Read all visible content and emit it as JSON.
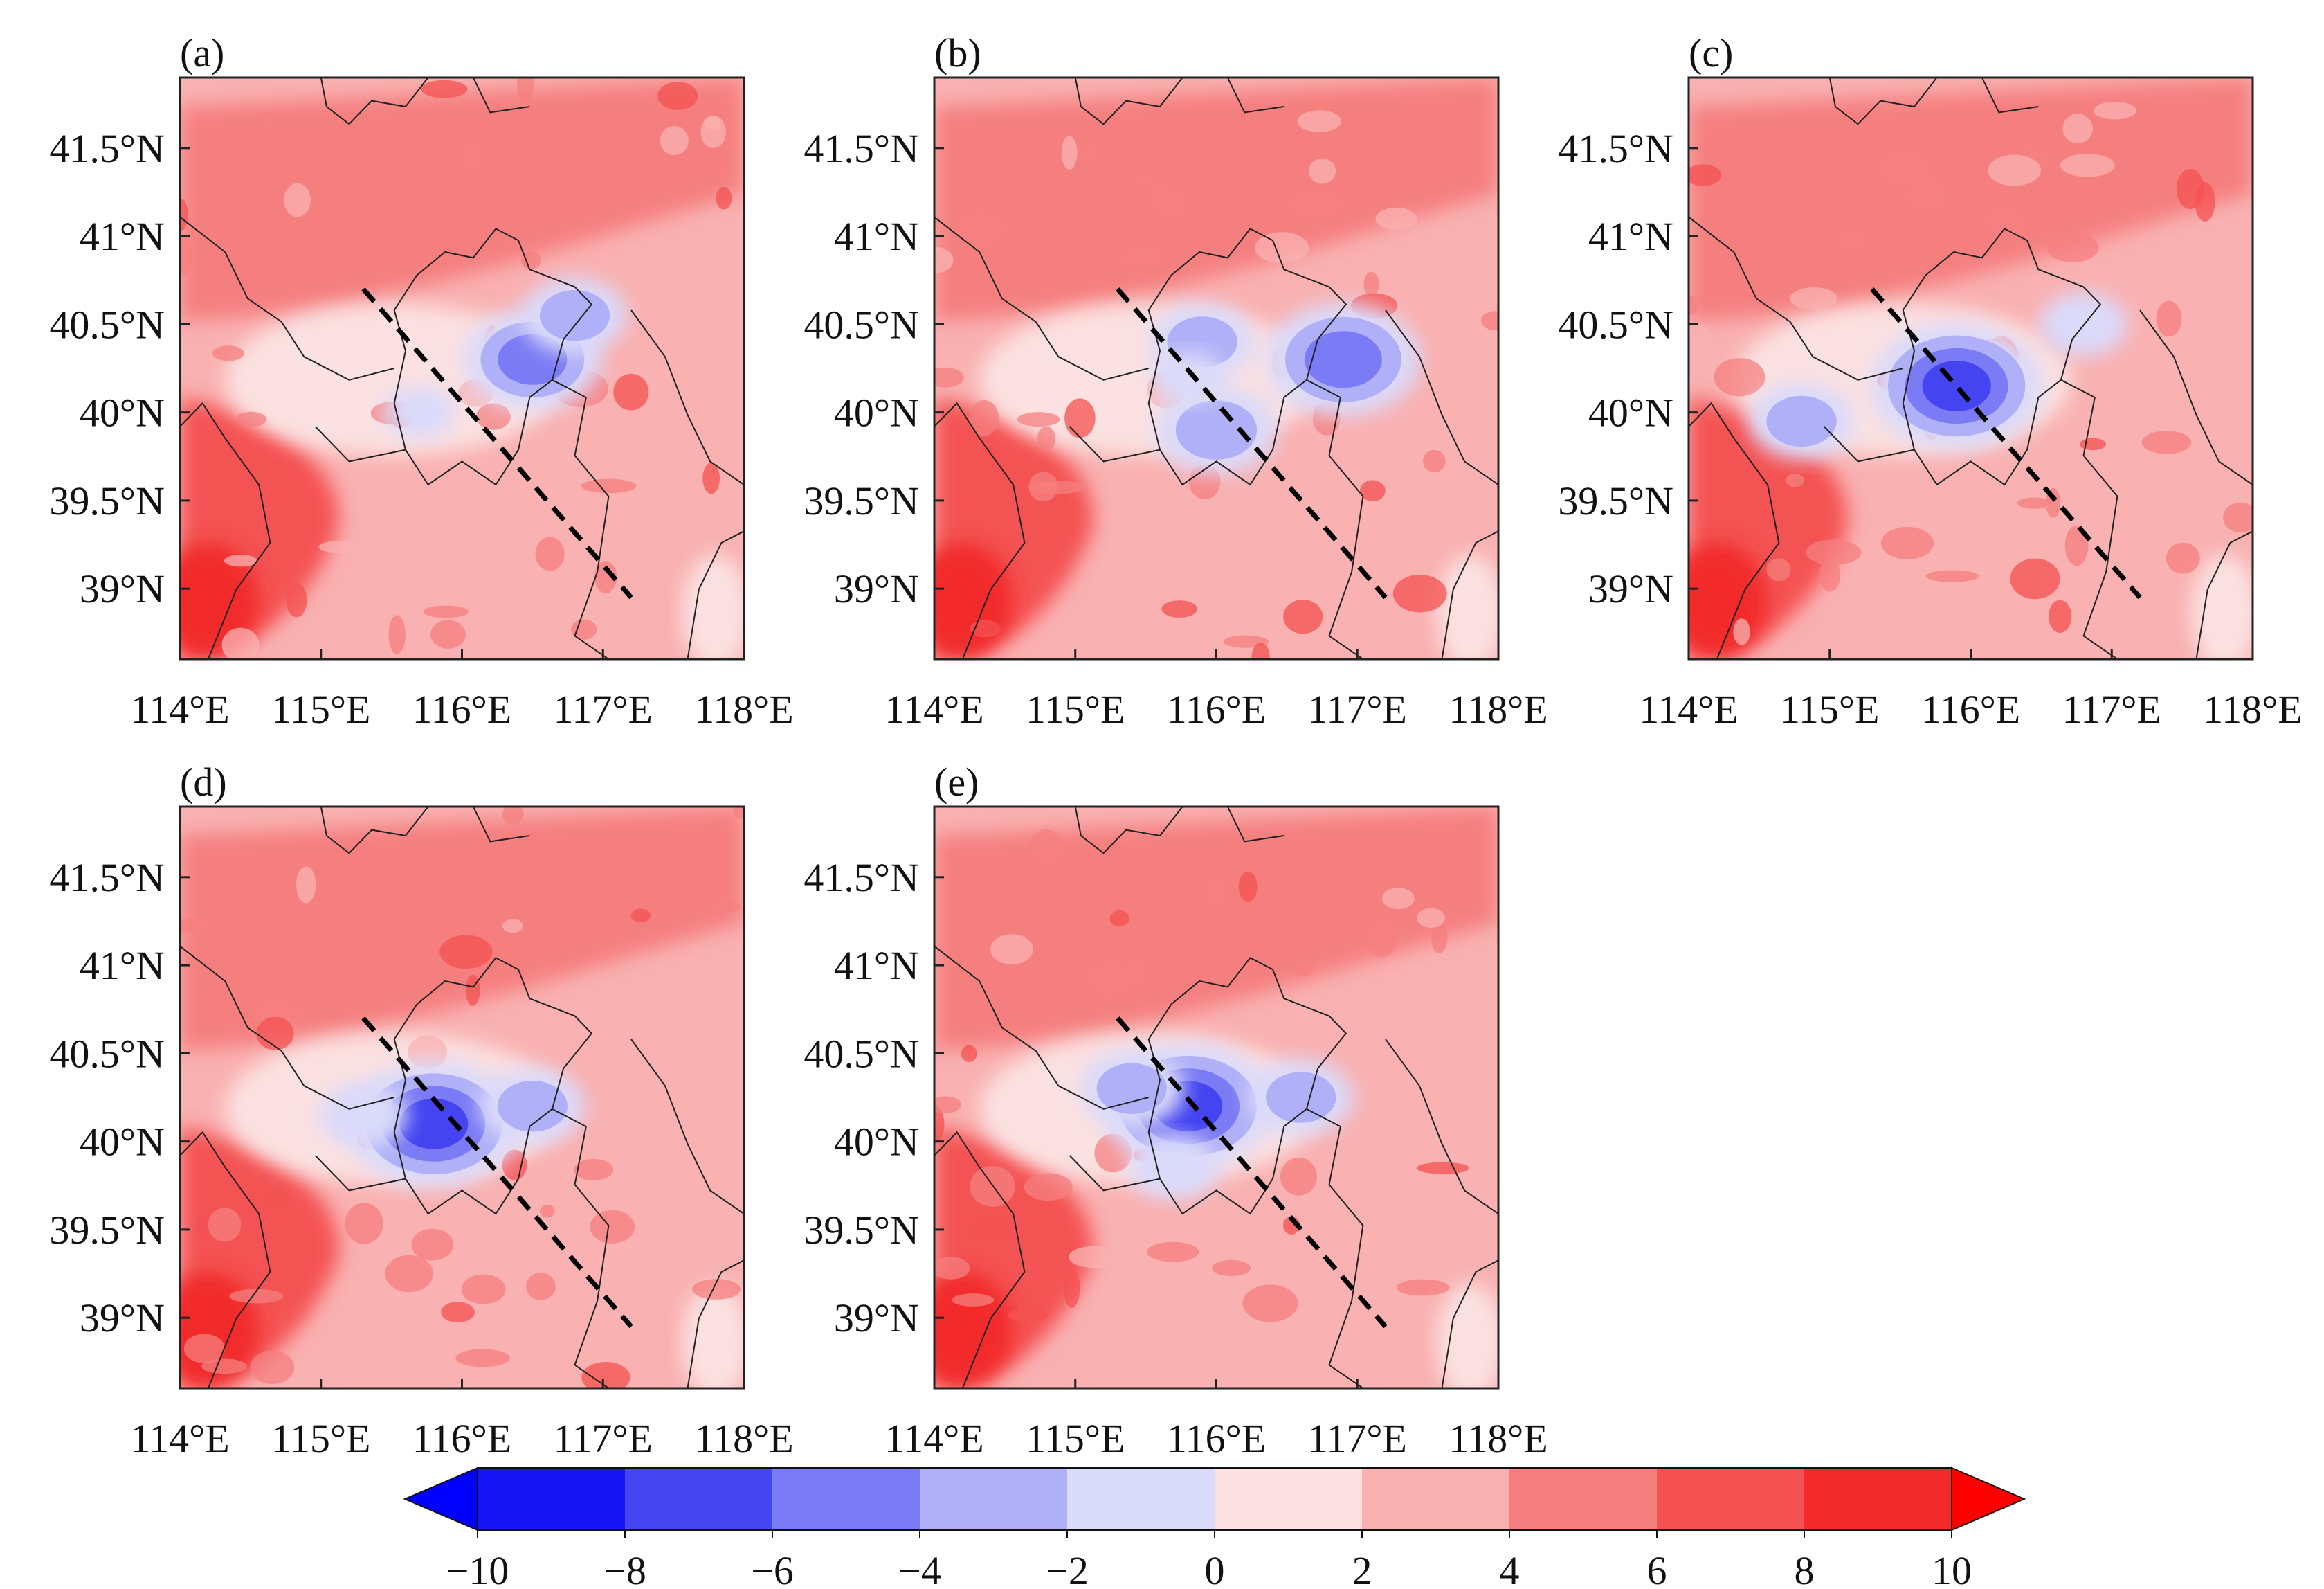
{
  "figure": {
    "panels": [
      {
        "id": "a",
        "label": "(a)",
        "blobs": [
          {
            "lon": 116.5,
            "lat": 40.3,
            "value": -5
          },
          {
            "lon": 116.8,
            "lat": 40.55,
            "value": -3
          },
          {
            "lon": 115.7,
            "lat": 40.0,
            "value": -1
          }
        ]
      },
      {
        "id": "b",
        "label": "(b)",
        "blobs": [
          {
            "lon": 116.9,
            "lat": 40.3,
            "value": -6
          },
          {
            "lon": 115.9,
            "lat": 40.4,
            "value": -3
          },
          {
            "lon": 116.0,
            "lat": 39.9,
            "value": -4
          },
          {
            "lon": 115.8,
            "lat": 40.2,
            "value": -1
          }
        ]
      },
      {
        "id": "c",
        "label": "(c)",
        "blobs": [
          {
            "lon": 115.9,
            "lat": 40.15,
            "value": -7
          },
          {
            "lon": 114.8,
            "lat": 39.95,
            "value": -3
          },
          {
            "lon": 116.8,
            "lat": 40.5,
            "value": -2
          }
        ]
      },
      {
        "id": "d",
        "label": "(d)",
        "blobs": [
          {
            "lon": 115.8,
            "lat": 40.1,
            "value": -7
          },
          {
            "lon": 115.3,
            "lat": 40.15,
            "value": -2
          },
          {
            "lon": 116.5,
            "lat": 40.2,
            "value": -3
          }
        ]
      },
      {
        "id": "e",
        "label": "(e)",
        "blobs": [
          {
            "lon": 115.8,
            "lat": 40.2,
            "value": -7
          },
          {
            "lon": 115.4,
            "lat": 40.3,
            "value": -3
          },
          {
            "lon": 116.6,
            "lat": 40.25,
            "value": -3
          },
          {
            "lon": 115.7,
            "lat": 39.85,
            "value": -2
          }
        ]
      }
    ],
    "lon_ticks": [
      "114°E",
      "115°E",
      "116°E",
      "117°E",
      "118°E"
    ],
    "lat_ticks": [
      "41.5°N",
      "41°N",
      "40.5°N",
      "40°N",
      "39.5°N",
      "39°N"
    ],
    "lon_values": [
      114,
      115,
      116,
      117,
      118
    ],
    "lat_values": [
      41.5,
      41,
      40.5,
      40,
      39.5,
      39
    ],
    "extent": {
      "lon_min": 114,
      "lon_max": 118,
      "lat_min": 38.6,
      "lat_max": 41.9
    },
    "cross_section": {
      "start": {
        "lon": 115.3,
        "lat": 40.7
      },
      "end": {
        "lon": 117.2,
        "lat": 38.95
      }
    }
  },
  "colorbar": {
    "levels": [
      -10,
      -8,
      -6,
      -4,
      -2,
      0,
      2,
      4,
      6,
      8,
      10
    ],
    "tick_labels": [
      "−10",
      "−8",
      "−6",
      "−4",
      "−2",
      "0",
      "2",
      "4",
      "6",
      "8",
      "10"
    ],
    "colors": [
      "#1414f5",
      "#4444f0",
      "#7b7bf5",
      "#b0b0f8",
      "#dadafa",
      "#fbe1e1",
      "#f9b1b1",
      "#f57f7f",
      "#f45252",
      "#f22a2a"
    ],
    "extend_low": "#0000ff",
    "extend_high": "#ff0000"
  },
  "chart_data": {
    "type": "heatmap",
    "variable": "filled contour field (unitless difference), 5 panels",
    "x_range": [
      114,
      118
    ],
    "y_range": [
      38.6,
      41.9
    ],
    "color_levels": [
      -10,
      -8,
      -6,
      -4,
      -2,
      0,
      2,
      4,
      6,
      8,
      10
    ],
    "panels": [
      "(a)",
      "(b)",
      "(c)",
      "(d)",
      "(e)"
    ]
  }
}
